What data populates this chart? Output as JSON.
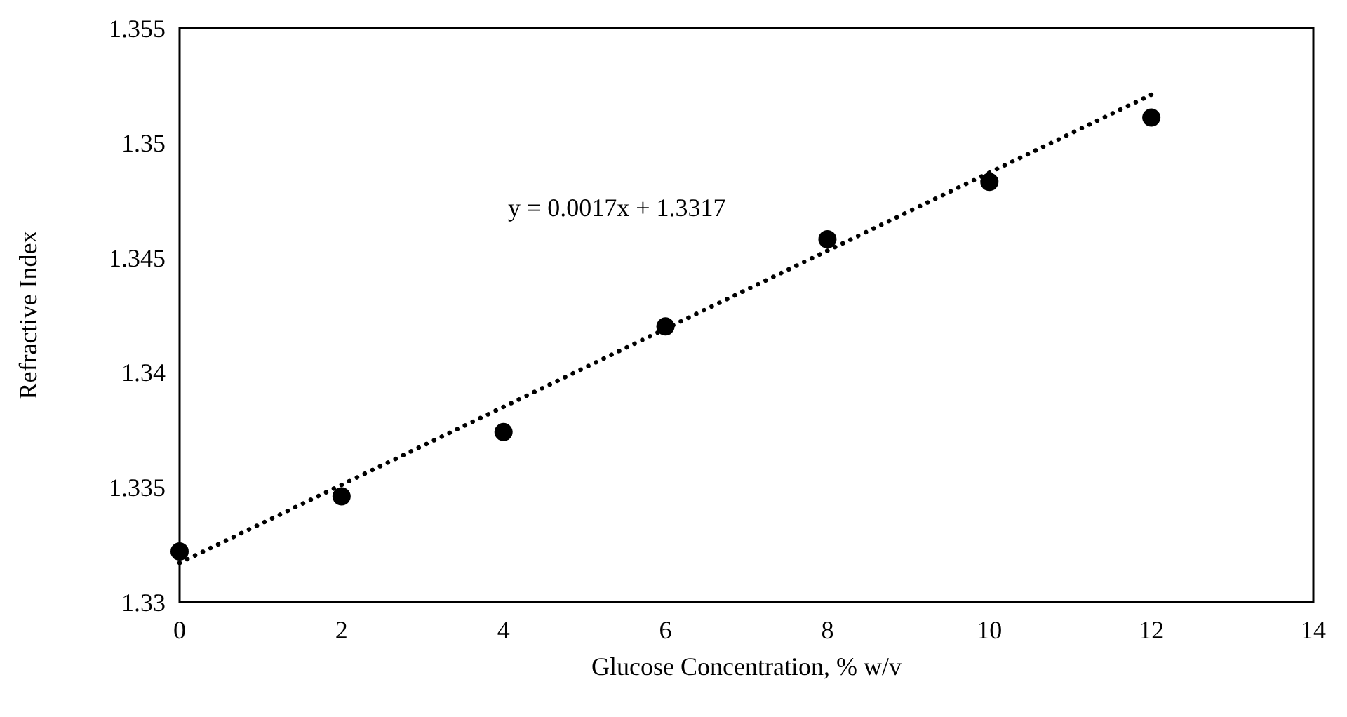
{
  "chart_data": {
    "type": "scatter",
    "xlabel": "Glucose Concentration, % w/v",
    "ylabel": "Refractive Index",
    "x": [
      0,
      2,
      4,
      6,
      8,
      10,
      12
    ],
    "series": [
      {
        "color": "#000000",
        "marker": "circle",
        "values": [
          1.3322,
          1.3346,
          1.3374,
          1.342,
          1.3458,
          1.3483,
          1.3511
        ]
      },
      {
        "type": "line",
        "color": "#000000",
        "line_style": "dotted",
        "x": [
          0,
          12
        ],
        "values": [
          1.3317,
          1.3521
        ]
      }
    ],
    "annotations": [
      "y = 0.0017x + 1.3317"
    ],
    "xlim": [
      0,
      14
    ],
    "xticks": [
      0,
      2,
      4,
      6,
      8,
      10,
      12,
      14
    ],
    "ylim": [
      1.33,
      1.355
    ],
    "yticks": [
      1.33,
      1.335,
      1.34,
      1.345,
      1.35,
      1.355
    ],
    "grid": false
  }
}
